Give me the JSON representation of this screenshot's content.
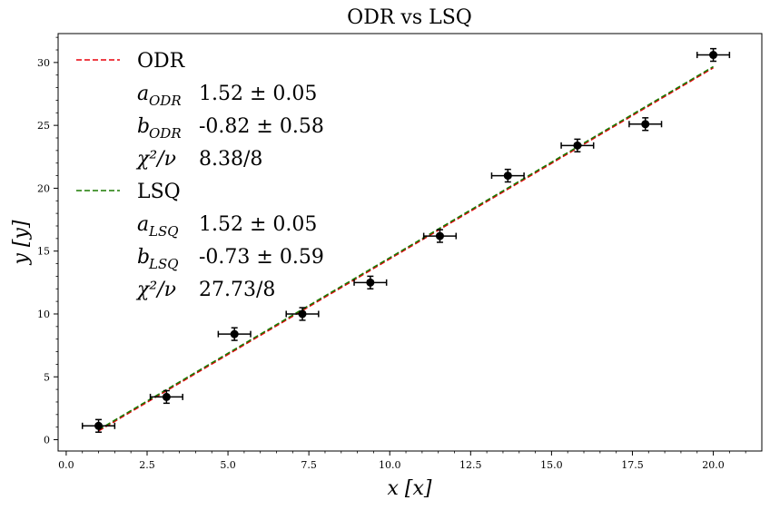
{
  "chart_data": {
    "type": "scatter",
    "title": "ODR vs LSQ",
    "xlabel": "x [x]",
    "ylabel": "y [y]",
    "xlim": [
      -0.25,
      21.5
    ],
    "ylim": [
      -0.9,
      32.3
    ],
    "xticks": [
      0.0,
      2.5,
      5.0,
      7.5,
      10.0,
      12.5,
      15.0,
      17.5,
      20.0
    ],
    "xtick_labels": [
      "0.0",
      "2.5",
      "5.0",
      "7.5",
      "10.0",
      "12.5",
      "15.0",
      "17.5",
      "20.0"
    ],
    "yticks": [
      0,
      5,
      10,
      15,
      20,
      25,
      30
    ],
    "ytick_labels": [
      "0",
      "5",
      "10",
      "15",
      "20",
      "25",
      "30"
    ],
    "points": {
      "x": [
        1.0,
        3.1,
        5.2,
        7.3,
        9.4,
        11.55,
        13.65,
        15.8,
        17.9,
        20.0
      ],
      "y": [
        1.1,
        3.4,
        8.4,
        10.0,
        12.5,
        16.2,
        21.0,
        23.4,
        25.1,
        30.6
      ],
      "xerr": [
        0.5,
        0.5,
        0.5,
        0.5,
        0.5,
        0.5,
        0.5,
        0.5,
        0.5,
        0.5
      ],
      "yerr": [
        0.5,
        0.5,
        0.5,
        0.5,
        0.5,
        0.5,
        0.5,
        0.5,
        0.5,
        0.5
      ],
      "color": "#000000"
    },
    "series": [
      {
        "name": "ODR",
        "style": "dashed",
        "color": "#e8000b",
        "slope": 1.52,
        "intercept": -0.82,
        "x_range": [
          1.0,
          20.0
        ],
        "params": [
          {
            "sym": "a",
            "sub": "ODR",
            "value": "1.52 ± 0.05"
          },
          {
            "sym": "b",
            "sub": "ODR",
            "value": "-0.82 ± 0.58"
          },
          {
            "sym": "χ²/ν",
            "sub": "",
            "value": "8.38/8"
          }
        ]
      },
      {
        "name": "LSQ",
        "style": "dashed",
        "color": "#1a7a00",
        "slope": 1.52,
        "intercept": -0.73,
        "x_range": [
          1.0,
          20.0
        ],
        "params": [
          {
            "sym": "a",
            "sub": "LSQ",
            "value": "1.52 ± 0.05"
          },
          {
            "sym": "b",
            "sub": "LSQ",
            "value": "-0.73 ± 0.59"
          },
          {
            "sym": "χ²/ν",
            "sub": "",
            "value": "27.73/8"
          }
        ]
      }
    ],
    "legend_position": "top-left"
  }
}
